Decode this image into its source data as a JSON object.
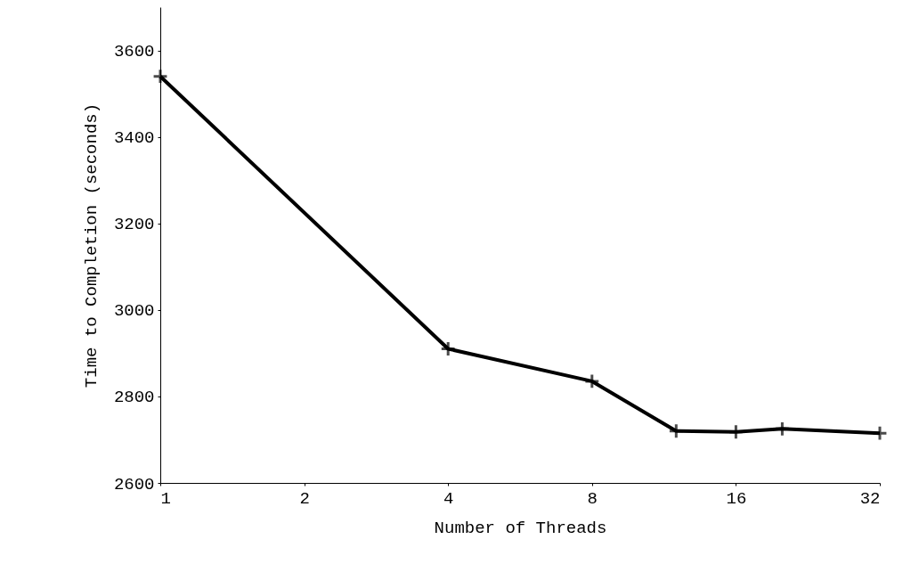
{
  "chart_data": {
    "type": "line",
    "xlabel": "Number of Threads",
    "ylabel": "Time to Completion (seconds)",
    "x": [
      1,
      4,
      8,
      12,
      16,
      20,
      32
    ],
    "series": [
      {
        "color": "#000000",
        "values": [
          3540,
          2910,
          2835,
          2720,
          2718,
          2725,
          2715
        ]
      }
    ],
    "xlim": [
      1,
      32
    ],
    "xticks": [
      1,
      2,
      4,
      8,
      16,
      32
    ],
    "ylim": [
      2600,
      3700
    ],
    "yticks": [
      2600,
      2800,
      3000,
      3200,
      3400,
      3600
    ],
    "log": "x",
    "grid": false,
    "marker": "cross",
    "line_style": "solid"
  }
}
